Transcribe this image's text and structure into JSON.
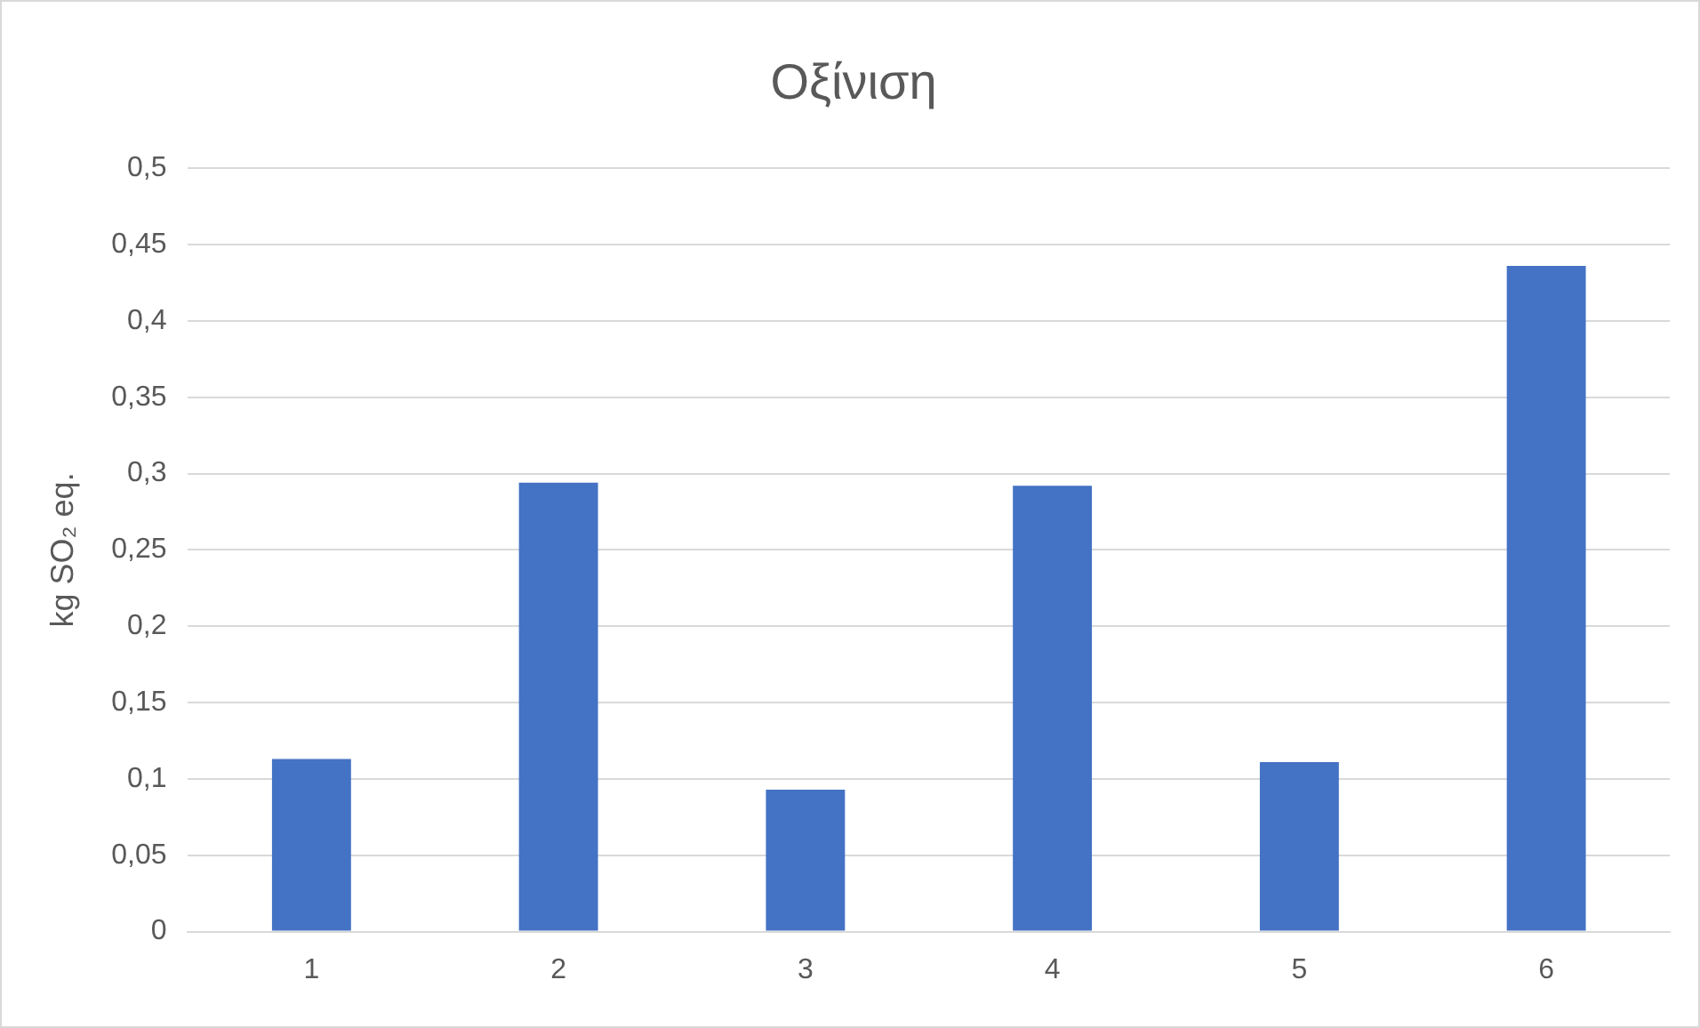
{
  "chart_data": {
    "type": "bar",
    "title": "Οξίνιση",
    "ylabel": "kg SO₂ eq.",
    "categories": [
      "1",
      "2",
      "3",
      "4",
      "5",
      "6"
    ],
    "values": [
      0.113,
      0.294,
      0.093,
      0.292,
      0.111,
      0.436
    ],
    "color": "#4472c4",
    "ylim": [
      0,
      0.5
    ],
    "yticks": [
      0,
      {
        "value": 0.05,
        "label": "0,05"
      },
      {
        "value": 0.1,
        "label": "0,1"
      },
      {
        "value": 0.15,
        "label": "0,15"
      },
      {
        "value": 0.2,
        "label": "0,2"
      },
      {
        "value": 0.25,
        "label": "0,25"
      },
      {
        "value": 0.3,
        "label": "0,3"
      },
      {
        "value": 0.35,
        "label": "0,35"
      },
      {
        "value": 0.4,
        "label": "0,4"
      },
      {
        "value": 0.45,
        "label": "0,45"
      },
      {
        "value": 0.5,
        "label": "0,5"
      }
    ],
    "grid": "y"
  }
}
